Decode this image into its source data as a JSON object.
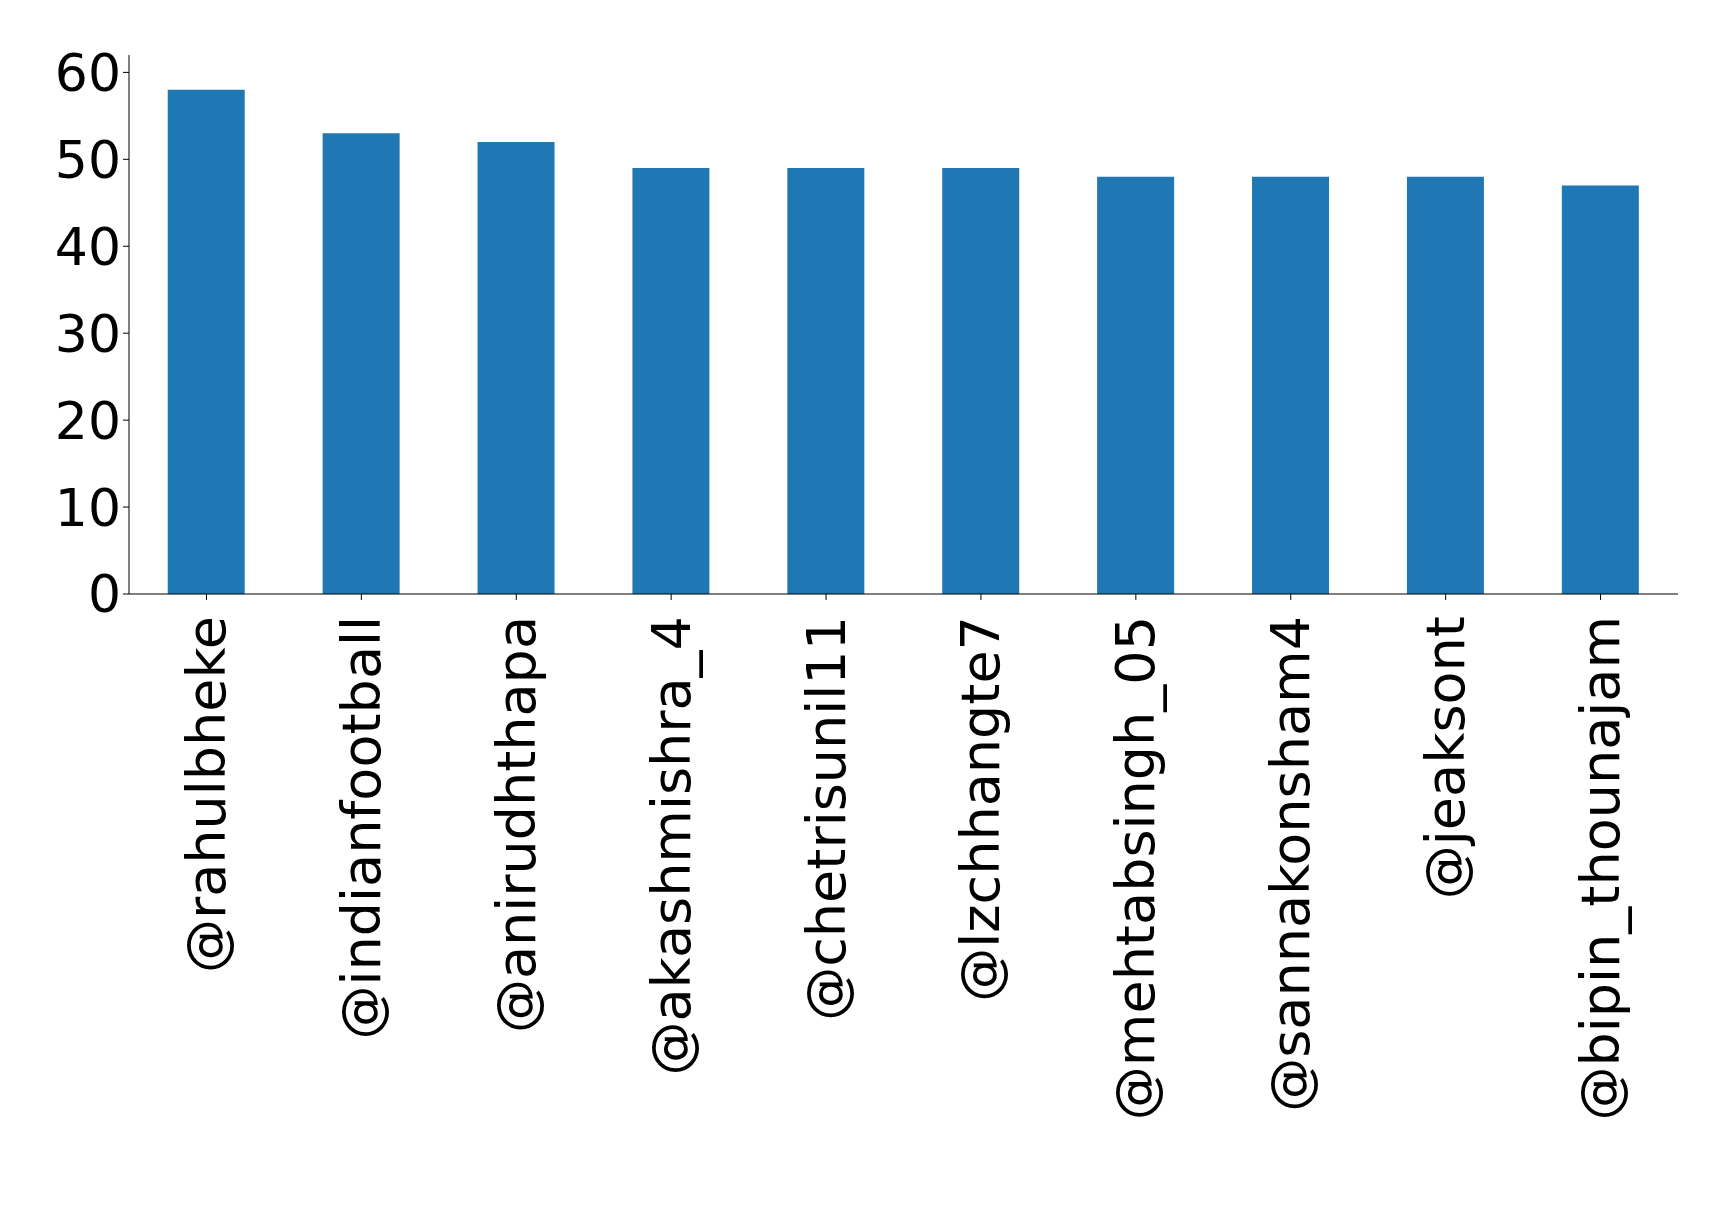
{
  "chart_data": {
    "type": "bar",
    "categories": [
      "@rahulbheke",
      "@indianfootball",
      "@anirudhthapa",
      "@akashmishra_4",
      "@chetrisunil11",
      "@lzchhangte7",
      "@mehtabsingh_05",
      "@sannakonsham4",
      "@jeaksont",
      "@bipin_thounajam"
    ],
    "values": [
      58,
      53,
      52,
      49,
      49,
      49,
      48,
      48,
      48,
      47
    ],
    "color": "#1f77b4",
    "ylim": [
      0,
      62
    ],
    "yticks": [
      0,
      10,
      20,
      30,
      40,
      50,
      60
    ]
  }
}
